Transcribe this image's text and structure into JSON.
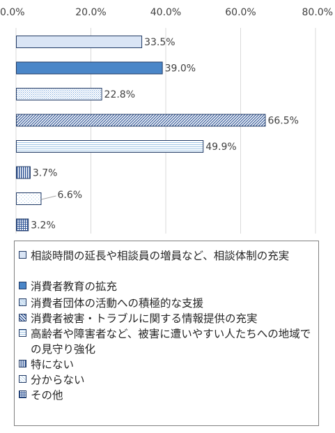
{
  "chart_data": {
    "type": "bar",
    "orientation": "horizontal",
    "xlim": [
      0,
      80
    ],
    "x_ticks": [
      "0.0%",
      "20.0%",
      "40.0%",
      "60.0%",
      "80.0%"
    ],
    "grid": "vertical",
    "legend_placement": "bottom",
    "categories": [
      "相談時間の延長や相談員の増員など、相談体制の充実",
      "消費者教育の拡充",
      "消費者団体の活動への積極的な支援",
      "消費者被害・トラブルに関する情報提供の充実",
      "高齢者や障害者など、被害に遭いやすい人たちへの地域での見守り強化",
      "特にない",
      "分からない",
      "その他"
    ],
    "values": [
      33.5,
      39.0,
      22.8,
      66.5,
      49.9,
      3.7,
      6.6,
      3.2
    ],
    "data_labels": [
      "33.5%",
      "39.0%",
      "22.8%",
      "66.5%",
      "49.9%",
      "3.7%",
      "6.6%",
      "3.2%"
    ],
    "fills": [
      {
        "pattern": "light",
        "color": "#dae5f5"
      },
      {
        "pattern": "solid",
        "color": "#4a86c8"
      },
      {
        "pattern": "dots",
        "color": "#9dc3e6"
      },
      {
        "pattern": "diagonal",
        "color": "#4472c4"
      },
      {
        "pattern": "hlines",
        "color": "#9dc3e6"
      },
      {
        "pattern": "vlines",
        "color": "#4472c4"
      },
      {
        "pattern": "sparse",
        "color": "#9dc3e6"
      },
      {
        "pattern": "grid",
        "color": "#4472c4"
      }
    ]
  },
  "legend": {
    "items": [
      "相談時間の延長や相談員の増員など、相談体制の充実",
      "消費者教育の拡充",
      "消費者団体の活動への積極的な支援",
      "消費者被害・トラブルに関する情報提供の充実",
      "高齢者や障害者など、被害に遭いやすい人たちへの地域での見守り強化",
      "特にない",
      "分からない",
      "その他"
    ]
  }
}
